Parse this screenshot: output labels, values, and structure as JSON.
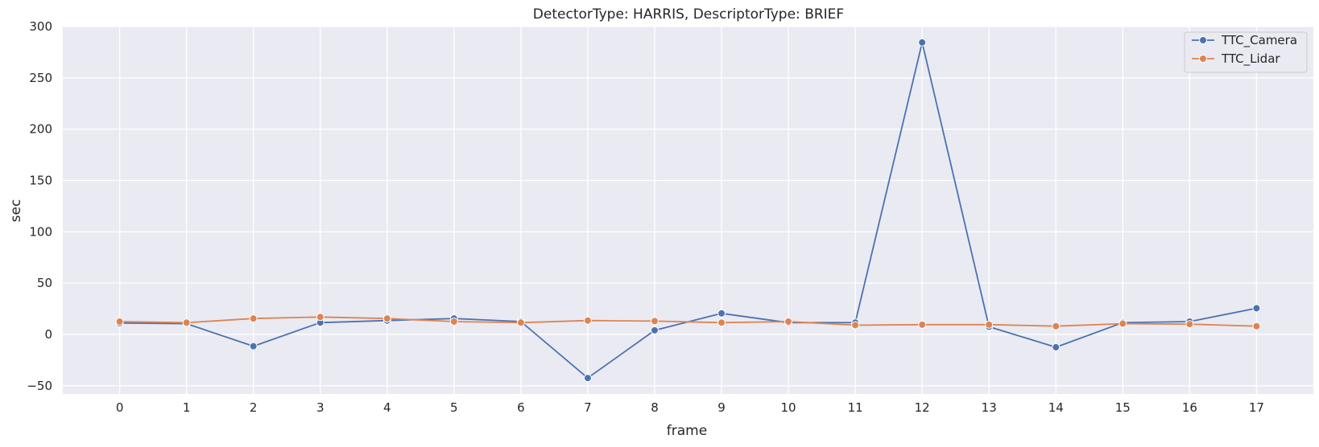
{
  "chart_data": {
    "type": "line",
    "title": "DetectorType: HARRIS, DescriptorType: BRIEF",
    "xlabel": "frame",
    "ylabel": "sec",
    "x": [
      0,
      1,
      2,
      3,
      4,
      5,
      6,
      7,
      8,
      9,
      10,
      11,
      12,
      13,
      14,
      15,
      16,
      17
    ],
    "xlim": [
      -0.85,
      17.85
    ],
    "ylim": [
      -58,
      300
    ],
    "yticks": [
      -50,
      0,
      50,
      100,
      150,
      200,
      250,
      300
    ],
    "ytick_labels": [
      "−50",
      "0",
      "50",
      "100",
      "150",
      "200",
      "250",
      "300"
    ],
    "grid": true,
    "legend_position": "top-right",
    "series": [
      {
        "name": "TTC_Camera",
        "color": "#4c72b0",
        "marker": "circle",
        "values": [
          11.0,
          10.5,
          -11.5,
          11.5,
          13.5,
          15.5,
          12.5,
          -42.5,
          4.0,
          20.5,
          11.5,
          11.5,
          284.5,
          7.5,
          -12.5,
          11.5,
          12.5,
          25.5
        ]
      },
      {
        "name": "TTC_Lidar",
        "color": "#dd8452",
        "marker": "circle",
        "values": [
          12.5,
          11.5,
          15.5,
          17.0,
          15.5,
          12.5,
          11.5,
          13.5,
          13.0,
          11.5,
          12.5,
          9.0,
          9.5,
          9.5,
          8.0,
          10.5,
          10.0,
          8.0
        ]
      }
    ]
  }
}
